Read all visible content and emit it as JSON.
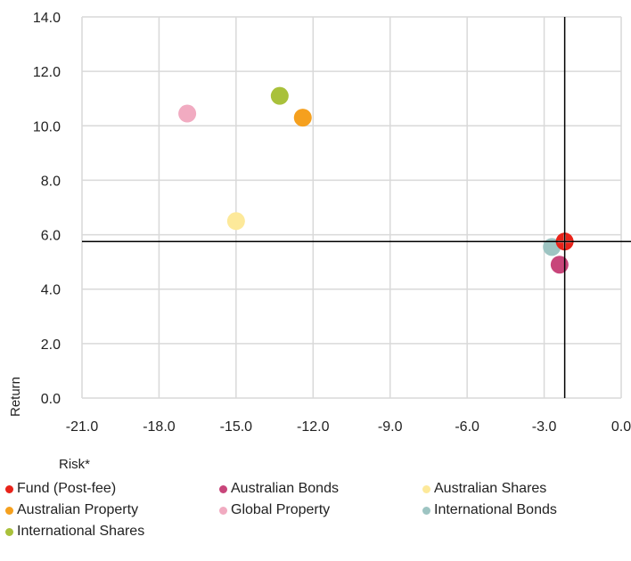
{
  "chart_data": {
    "type": "scatter",
    "xlabel": "Risk*",
    "ylabel": "Return",
    "xlim": [
      -21.0,
      0.0
    ],
    "ylim": [
      0.0,
      14.0
    ],
    "xticks": [
      "-21.0",
      "-18.0",
      "-15.0",
      "-12.0",
      "-9.0",
      "-6.0",
      "-3.0",
      "0.0"
    ],
    "yticks": [
      "0.0",
      "2.0",
      "4.0",
      "6.0",
      "8.0",
      "10.0",
      "12.0",
      "14.0"
    ],
    "grid": true,
    "legend_position": "bottom",
    "crosshair": {
      "x": -2.2,
      "y": 5.75
    },
    "series": [
      {
        "name": "Fund (Post-fee)",
        "color": "#e8231a",
        "x": -2.2,
        "y": 5.75
      },
      {
        "name": "Australian Bonds",
        "color": "#c8457a",
        "x": -2.4,
        "y": 4.9
      },
      {
        "name": "Australian Shares",
        "color": "#fde99a",
        "x": -15.0,
        "y": 6.5
      },
      {
        "name": "Australian Property",
        "color": "#f5a01e",
        "x": -12.4,
        "y": 10.3
      },
      {
        "name": "Global Property",
        "color": "#f1abc1",
        "x": -16.9,
        "y": 10.45
      },
      {
        "name": "International Bonds",
        "color": "#9dc4c2",
        "x": -2.7,
        "y": 5.55
      },
      {
        "name": "International Shares",
        "color": "#a9c13b",
        "x": -13.3,
        "y": 11.1
      }
    ]
  }
}
